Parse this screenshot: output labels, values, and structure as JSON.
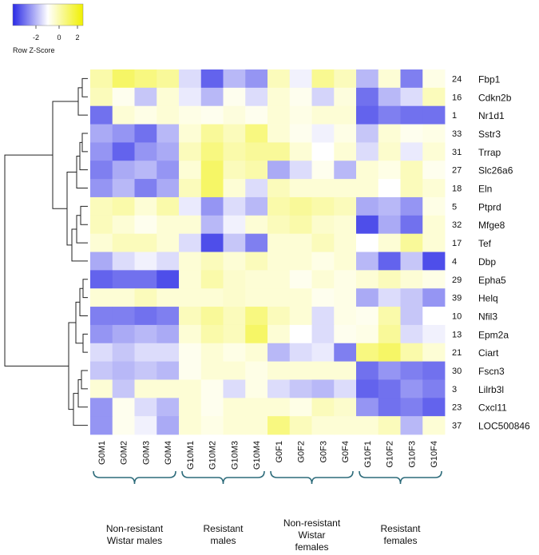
{
  "chart_data": {
    "type": "heatmap",
    "title": "",
    "legend": {
      "label": "Row Z-Score",
      "ticks": [
        "-2",
        "0",
        "2"
      ],
      "range": [
        -3,
        3
      ],
      "colors": {
        "low": "#2a2ae6",
        "mid": "#ffffff",
        "high": "#f0f000"
      }
    },
    "columns": [
      "G0M1",
      "G0M2",
      "G0M3",
      "G0M4",
      "G10M1",
      "G10M2",
      "G10M3",
      "G10M4",
      "G0F1",
      "G0F2",
      "G0F3",
      "G0F4",
      "G10F1",
      "G10F2",
      "G10F3",
      "G10F4"
    ],
    "rows": [
      {
        "id": "24",
        "gene": "Fbp1"
      },
      {
        "id": "16",
        "gene": "Cdkn2b"
      },
      {
        "id": "1",
        "gene": "Nr1d1"
      },
      {
        "id": "33",
        "gene": "Sstr3"
      },
      {
        "id": "31",
        "gene": "Trrap"
      },
      {
        "id": "27",
        "gene": "Slc26a6"
      },
      {
        "id": "18",
        "gene": "Eln"
      },
      {
        "id": "5",
        "gene": "Ptprd"
      },
      {
        "id": "32",
        "gene": "Mfge8"
      },
      {
        "id": "17",
        "gene": "Tef"
      },
      {
        "id": "4",
        "gene": "Dbp"
      },
      {
        "id": "29",
        "gene": "Epha5"
      },
      {
        "id": "39",
        "gene": "Helq"
      },
      {
        "id": "10",
        "gene": "Nfil3"
      },
      {
        "id": "13",
        "gene": "Epm2a"
      },
      {
        "id": "21",
        "gene": "Ciart"
      },
      {
        "id": "30",
        "gene": "Fscn3"
      },
      {
        "id": "3",
        "gene": "Lilrb3l"
      },
      {
        "id": "23",
        "gene": "Cxcl11"
      },
      {
        "id": "37",
        "gene": "LOC500846"
      }
    ],
    "values": [
      [
        1.0,
        1.8,
        1.5,
        1.2,
        -0.5,
        -2.2,
        -1.0,
        -1.5,
        0.8,
        -0.2,
        1.3,
        0.8,
        -1.0,
        0.5,
        -1.8,
        0.3
      ],
      [
        0.8,
        0.2,
        -0.8,
        0.5,
        -0.3,
        -1.0,
        0.2,
        -0.5,
        0.5,
        0.2,
        -0.6,
        0.4,
        -2.0,
        -1.0,
        -0.5,
        0.8
      ],
      [
        -2.0,
        0.5,
        0.3,
        0.5,
        0.3,
        0.2,
        0.4,
        0.2,
        0.5,
        0.3,
        0.5,
        0.5,
        -2.2,
        -1.8,
        -2.0,
        -2.0
      ],
      [
        -1.2,
        -1.5,
        -2.0,
        -1.0,
        0.5,
        1.2,
        0.8,
        1.5,
        0.5,
        0.2,
        -0.2,
        0.3,
        -0.8,
        0.5,
        0.2,
        0.3
      ],
      [
        -1.5,
        -2.2,
        -1.5,
        -1.2,
        0.8,
        1.5,
        1.0,
        1.2,
        1.2,
        0.5,
        0.0,
        0.5,
        -0.5,
        0.6,
        -0.3,
        0.5
      ],
      [
        -1.8,
        -1.2,
        -1.0,
        -1.5,
        0.5,
        1.8,
        0.8,
        1.0,
        -1.2,
        -0.5,
        0.2,
        -1.0,
        0.5,
        0.3,
        0.8,
        0.2
      ],
      [
        -1.5,
        -1.0,
        -1.8,
        -1.2,
        0.8,
        1.8,
        0.5,
        -0.5,
        0.8,
        0.5,
        0.5,
        0.5,
        0.5,
        0.0,
        0.8,
        0.5
      ],
      [
        0.8,
        1.0,
        0.5,
        1.0,
        -0.3,
        -1.5,
        -0.5,
        -1.0,
        1.0,
        1.2,
        1.0,
        0.8,
        -1.2,
        -1.0,
        -1.5,
        0.3
      ],
      [
        0.8,
        0.5,
        0.2,
        0.5,
        0.5,
        -1.0,
        -0.2,
        0.5,
        0.8,
        1.0,
        0.6,
        0.5,
        -2.5,
        -1.2,
        -2.0,
        0.5
      ],
      [
        0.5,
        0.8,
        0.8,
        0.5,
        -0.5,
        -2.5,
        -0.8,
        -1.8,
        0.5,
        0.5,
        0.8,
        0.5,
        0.0,
        0.5,
        1.2,
        0.5
      ],
      [
        -1.2,
        -0.5,
        -0.2,
        -0.5,
        0.5,
        0.8,
        0.5,
        0.8,
        0.5,
        0.5,
        0.3,
        0.5,
        -1.0,
        -2.2,
        -0.8,
        -2.5
      ],
      [
        -2.2,
        -2.0,
        -2.0,
        -2.5,
        0.5,
        1.0,
        0.6,
        0.5,
        0.5,
        0.2,
        0.5,
        0.3,
        0.5,
        0.8,
        0.5,
        0.3
      ],
      [
        0.5,
        0.5,
        0.8,
        0.5,
        0.5,
        0.5,
        0.6,
        0.5,
        0.5,
        0.5,
        0.2,
        0.3,
        -1.2,
        -0.5,
        -0.8,
        -1.5
      ],
      [
        -1.8,
        -1.8,
        -2.0,
        -1.8,
        0.8,
        1.2,
        0.8,
        1.5,
        0.8,
        0.5,
        -0.5,
        0.3,
        0.2,
        1.0,
        -0.8,
        0.0
      ],
      [
        -1.5,
        -1.2,
        -1.0,
        -1.2,
        0.5,
        1.0,
        0.8,
        1.8,
        0.5,
        0.0,
        -0.5,
        0.2,
        0.3,
        1.2,
        -0.5,
        -0.2
      ],
      [
        -0.5,
        -0.8,
        -0.5,
        -0.5,
        0.2,
        0.5,
        0.3,
        0.5,
        -1.0,
        -0.5,
        -0.3,
        -1.8,
        1.5,
        1.8,
        1.0,
        0.5
      ],
      [
        -0.8,
        -1.0,
        -0.8,
        -1.0,
        0.2,
        0.5,
        0.5,
        0.3,
        0.5,
        0.5,
        0.5,
        0.5,
        -2.0,
        -1.5,
        -1.8,
        -2.0
      ],
      [
        0.5,
        -0.8,
        0.5,
        0.5,
        0.5,
        0.2,
        -0.5,
        0.3,
        -0.5,
        -0.8,
        -1.0,
        -0.5,
        -2.2,
        -2.0,
        -1.5,
        -1.8
      ],
      [
        -1.5,
        0.2,
        -0.5,
        -1.0,
        0.5,
        0.2,
        0.5,
        0.5,
        0.5,
        0.3,
        0.8,
        0.6,
        -1.5,
        -2.0,
        -1.8,
        -2.2
      ],
      [
        -1.5,
        0.2,
        -0.2,
        -1.2,
        0.5,
        0.3,
        0.5,
        0.5,
        1.5,
        0.8,
        0.5,
        0.5,
        0.5,
        0.8,
        -1.0,
        0.5
      ]
    ],
    "groups": [
      {
        "label": "Non-resistant\nWistar males",
        "columns": [
          0,
          3
        ]
      },
      {
        "label": "Resistant\nmales",
        "columns": [
          4,
          7
        ]
      },
      {
        "label": "Non-resistant\nWistar\nfemales",
        "columns": [
          8,
          11
        ]
      },
      {
        "label": "Resistant\nfemales",
        "columns": [
          12,
          15
        ]
      }
    ],
    "dendrogram": "row"
  }
}
